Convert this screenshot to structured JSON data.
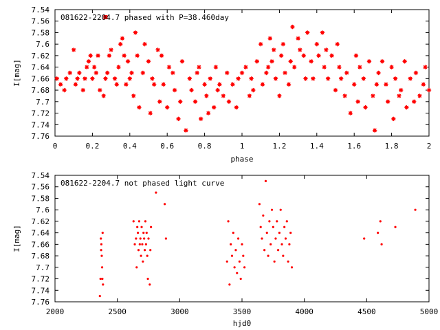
{
  "chart_data": [
    {
      "type": "scatter",
      "title": "081622-2204.7 phased with P=38.460day",
      "xlabel": "phase",
      "ylabel": "I[mag]",
      "xlim": [
        0,
        2
      ],
      "ylim": [
        7.76,
        7.54
      ],
      "y_inverted": true,
      "xticks": [
        0,
        0.2,
        0.4,
        0.6,
        0.8,
        1,
        1.2,
        1.4,
        1.6,
        1.8,
        2
      ],
      "yticks": [
        7.54,
        7.56,
        7.58,
        7.6,
        7.62,
        7.64,
        7.66,
        7.68,
        7.7,
        7.72,
        7.74,
        7.76
      ],
      "marker": "asterisk",
      "color": "#ff0000",
      "legend_marker_phase": 0.27,
      "series": [
        {
          "x": [
            0.01,
            0.03,
            0.05,
            0.06,
            0.08,
            0.1,
            0.11,
            0.12,
            0.13,
            0.15,
            0.16,
            0.17,
            0.18,
            0.19,
            0.2,
            0.21,
            0.22,
            0.23,
            0.24,
            0.26,
            0.27,
            0.28,
            0.29,
            0.3,
            0.32,
            0.33,
            0.34,
            0.35,
            0.36,
            0.37,
            0.38,
            0.39,
            0.4,
            0.41,
            0.42,
            0.43,
            0.44,
            0.45,
            0.47,
            0.48,
            0.5,
            0.51,
            0.52,
            0.53,
            0.55,
            0.56,
            0.57,
            0.58,
            0.6,
            0.61,
            0.63,
            0.64,
            0.66,
            0.67,
            0.68,
            0.7,
            0.72,
            0.73,
            0.75,
            0.76,
            0.77,
            0.78,
            0.8,
            0.81,
            0.82,
            0.83,
            0.85,
            0.86,
            0.87,
            0.88,
            0.9,
            0.92,
            0.93,
            0.95,
            0.97,
            0.98,
            1.0,
            1.02,
            1.04,
            1.05,
            1.06,
            1.08,
            1.1,
            1.11,
            1.13,
            1.14,
            1.15,
            1.16,
            1.17,
            1.18,
            1.2,
            1.21,
            1.22,
            1.23,
            1.25,
            1.26,
            1.27,
            1.28,
            1.3,
            1.31,
            1.33,
            1.34,
            1.35,
            1.37,
            1.38,
            1.4,
            1.41,
            1.43,
            1.44,
            1.45,
            1.46,
            1.48,
            1.5,
            1.51,
            1.52,
            1.53,
            1.55,
            1.56,
            1.58,
            1.6,
            1.61,
            1.62,
            1.63,
            1.65,
            1.66,
            1.68,
            1.7,
            1.71,
            1.72,
            1.73,
            1.75,
            1.77,
            1.78,
            1.8,
            1.81,
            1.82,
            1.84,
            1.85,
            1.87,
            1.88,
            1.9,
            1.92,
            1.93,
            1.95,
            1.97,
            1.98,
            2.0
          ],
          "y": [
            7.66,
            7.67,
            7.68,
            7.66,
            7.65,
            7.61,
            7.67,
            7.66,
            7.65,
            7.68,
            7.66,
            7.64,
            7.63,
            7.62,
            7.66,
            7.64,
            7.65,
            7.62,
            7.68,
            7.69,
            7.66,
            7.65,
            7.62,
            7.61,
            7.66,
            7.67,
            7.64,
            7.6,
            7.59,
            7.62,
            7.67,
            7.63,
            7.66,
            7.65,
            7.69,
            7.58,
            7.62,
            7.71,
            7.65,
            7.6,
            7.63,
            7.72,
            7.66,
            7.67,
            7.61,
            7.7,
            7.62,
            7.67,
            7.71,
            7.64,
            7.65,
            7.68,
            7.73,
            7.7,
            7.63,
            7.75,
            7.66,
            7.68,
            7.7,
            7.65,
            7.64,
            7.73,
            7.67,
            7.69,
            7.72,
            7.66,
            7.71,
            7.64,
            7.68,
            7.67,
            7.69,
            7.65,
            7.7,
            7.67,
            7.71,
            7.66,
            7.65,
            7.64,
            7.69,
            7.66,
            7.68,
            7.63,
            7.6,
            7.67,
            7.65,
            7.64,
            7.59,
            7.63,
            7.61,
            7.66,
            7.69,
            7.62,
            7.6,
            7.65,
            7.67,
            7.63,
            7.57,
            7.64,
            7.59,
            7.61,
            7.62,
            7.66,
            7.58,
            7.63,
            7.66,
            7.6,
            7.62,
            7.58,
            7.64,
            7.61,
            7.66,
            7.62,
            7.68,
            7.6,
            7.64,
            7.66,
            7.69,
            7.65,
            7.72,
            7.67,
            7.62,
            7.7,
            7.64,
            7.66,
            7.71,
            7.63,
            7.69,
            7.75,
            7.67,
            7.65,
            7.63,
            7.67,
            7.7,
            7.64,
            7.73,
            7.66,
            7.69,
            7.68,
            7.63,
            7.71,
            7.66,
            7.7,
            7.65,
            7.69,
            7.67,
            7.64,
            7.68
          ]
        }
      ]
    },
    {
      "type": "scatter",
      "title": "081622-2204.7 not phased light curve",
      "xlabel": "hjd0",
      "ylabel": "I[mag]",
      "xlim": [
        2000,
        5000
      ],
      "ylim": [
        7.76,
        7.54
      ],
      "y_inverted": true,
      "xticks": [
        2000,
        2500,
        3000,
        3500,
        4000,
        4500,
        5000
      ],
      "yticks": [
        7.54,
        7.56,
        7.58,
        7.6,
        7.62,
        7.64,
        7.66,
        7.68,
        7.7,
        7.72,
        7.74,
        7.76
      ],
      "marker": "dot",
      "color": "#ff0000",
      "series": [
        {
          "x": [
            2360,
            2365,
            2368,
            2370,
            2372,
            2375,
            2378,
            2380,
            2382,
            2385,
            2630,
            2640,
            2650,
            2655,
            2660,
            2665,
            2670,
            2675,
            2680,
            2685,
            2690,
            2695,
            2700,
            2705,
            2710,
            2715,
            2720,
            2725,
            2730,
            2735,
            2740,
            2745,
            2750,
            2760,
            2765,
            2770,
            2810,
            2880,
            2890,
            3380,
            3390,
            3400,
            3410,
            3420,
            3430,
            3440,
            3450,
            3460,
            3470,
            3480,
            3490,
            3500,
            3510,
            3520,
            3640,
            3650,
            3660,
            3670,
            3680,
            3690,
            3700,
            3710,
            3720,
            3730,
            3740,
            3750,
            3760,
            3770,
            3780,
            3790,
            3800,
            3810,
            3820,
            3830,
            3840,
            3850,
            3860,
            3870,
            3880,
            3890,
            3900,
            4480,
            4590,
            4610,
            4620,
            4730,
            4890
          ],
          "y": [
            7.75,
            7.72,
            7.65,
            7.67,
            7.66,
            7.68,
            7.7,
            7.72,
            7.64,
            7.73,
            7.62,
            7.66,
            7.65,
            7.7,
            7.63,
            7.64,
            7.67,
            7.62,
            7.66,
            7.65,
            7.68,
            7.63,
            7.66,
            7.69,
            7.64,
            7.65,
            7.67,
            7.62,
            7.66,
            7.64,
            7.68,
            7.72,
            7.65,
            7.73,
            7.67,
            7.63,
            7.57,
            7.59,
            7.65,
            7.69,
            7.62,
            7.73,
            7.66,
            7.68,
            7.64,
            7.7,
            7.67,
            7.71,
            7.65,
            7.69,
            7.72,
            7.66,
            7.68,
            7.7,
            7.59,
            7.63,
            7.65,
            7.61,
            7.67,
            7.55,
            7.64,
            7.68,
            7.62,
            7.66,
            7.6,
            7.63,
            7.69,
            7.65,
            7.62,
            7.67,
            7.64,
            7.6,
            7.66,
            7.68,
            7.63,
            7.65,
            7.62,
            7.69,
            7.66,
            7.64,
            7.7,
            7.65,
            7.64,
            7.62,
            7.66,
            7.63,
            7.6
          ]
        }
      ]
    }
  ]
}
